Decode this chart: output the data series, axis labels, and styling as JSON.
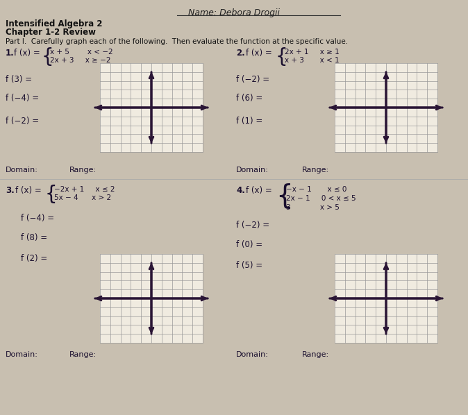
{
  "background_color": "#c8bfb0",
  "page_color": "#ede8df",
  "name_line": "Name: Debora Drogii",
  "title1": "Intensified Algebra 2",
  "title2": "Chapter 1-2 Review",
  "part_label": "Part I.  Carefully graph each of the following.  Then evaluate the function at the specific value.",
  "p1_num": "1.",
  "p1_fx": "f (x) =",
  "p1_case1": "x + 5        x < −2",
  "p1_case2": "2x + 3     x ≥ −2",
  "p1_evals": [
    "f (3) =",
    "f (−4) =",
    "f (−2) ="
  ],
  "p1_domain": "Domain:",
  "p1_range": "Range:",
  "p2_num": "2.",
  "p2_fx": "f (x) =",
  "p2_case1": "2x + 1     x ≥ 1",
  "p2_case2": "x + 3       x < 1",
  "p2_evals": [
    "f (−2) =",
    "f (6) =",
    "f (1) ="
  ],
  "p2_domain": "Domain:",
  "p2_range": "Range:",
  "p3_num": "3.",
  "p3_fx": "f (x) =",
  "p3_case1": "−2x + 1     x ≤ 2",
  "p3_case2": "5x − 4      x > 2",
  "p3_evals": [
    "f (−4) =",
    "f (8) =",
    "f (2) ="
  ],
  "p3_domain": "Domain:",
  "p3_range": "Range:",
  "p4_num": "4.",
  "p4_fx": "f (x) =",
  "p4_case1": "−x − 1       x ≤ 0",
  "p4_case2": "2x − 1     0 < x ≤ 5",
  "p4_case3": "3             x > 5",
  "p4_evals": [
    "f (−2) =",
    "f (0) =",
    "f (5) ="
  ],
  "p4_domain": "Domain:",
  "p4_range": "Range:",
  "grid_color": "#999999",
  "axis_color": "#2a1535",
  "text_color": "#111111",
  "label_color": "#1a0f2e"
}
